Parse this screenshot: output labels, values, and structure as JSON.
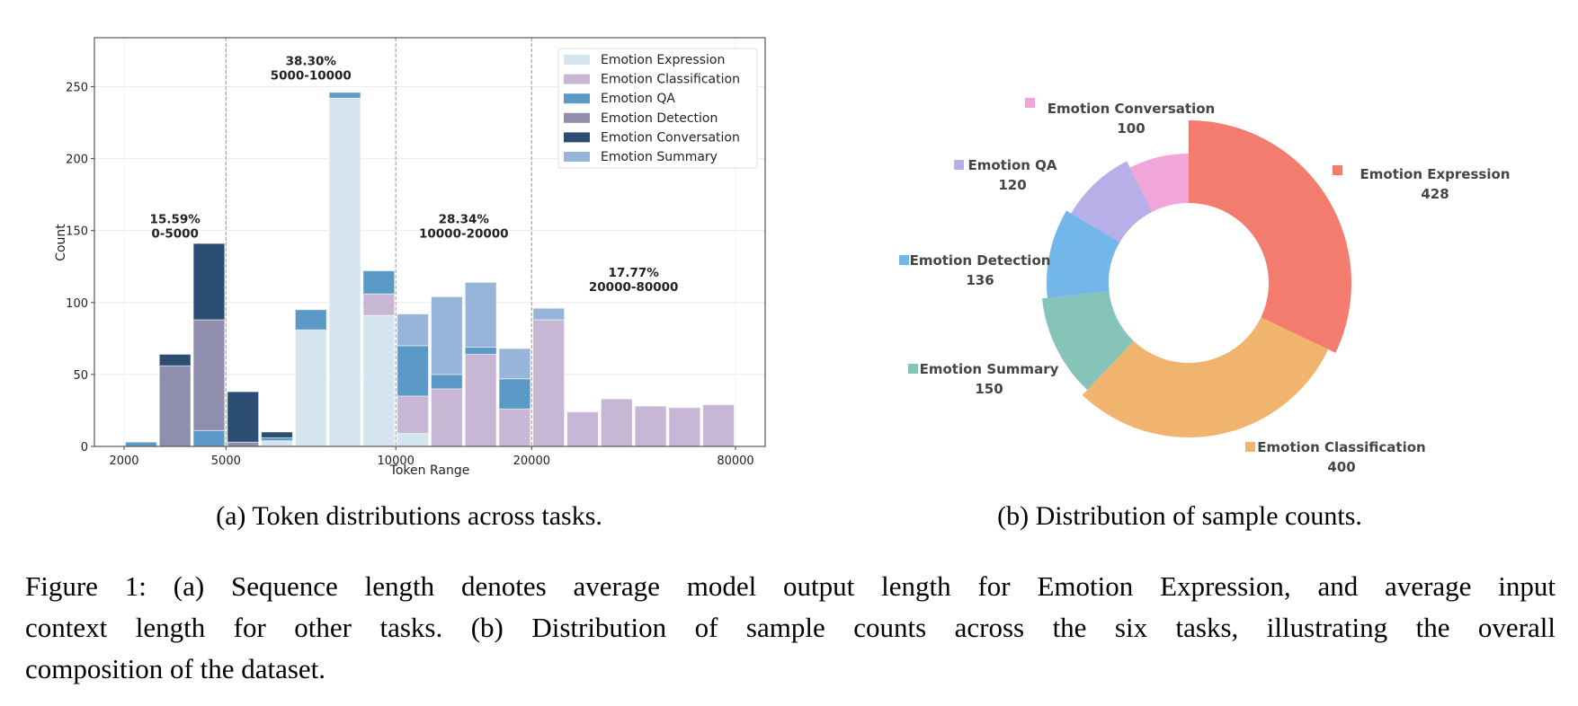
{
  "chart_data": [
    {
      "type": "bar",
      "stacked": true,
      "xlabel": "Token Range",
      "ylabel": "Count",
      "ylim": [
        0,
        284
      ],
      "yticks": [
        0,
        50,
        100,
        150,
        200,
        250
      ],
      "x_ticks": [
        {
          "label": "2000",
          "bin": 0
        },
        {
          "label": "5000",
          "bin": 3
        },
        {
          "label": "10000",
          "bin": 8
        },
        {
          "label": "20000",
          "bin": 12
        },
        {
          "label": "80000",
          "bin": 18
        }
      ],
      "grid": true,
      "legend_position": "top-right",
      "range_dividers": [
        3,
        8,
        12
      ],
      "annotations": [
        {
          "percent": "15.59%",
          "range": "0-5000",
          "bin_center": 1.5,
          "y": 155
        },
        {
          "percent": "38.30%",
          "range": "5000-10000",
          "bin_center": 5.5,
          "y": 265
        },
        {
          "percent": "28.34%",
          "range": "10000-20000",
          "bin_center": 10.0,
          "y": 155
        },
        {
          "percent": "17.77%",
          "range": "20000-80000",
          "bin_center": 15.0,
          "y": 118
        }
      ],
      "bin_count": 18,
      "series": [
        {
          "name": "Emotion Expression",
          "color": "#d4e5f0",
          "values": [
            0,
            0,
            0,
            0,
            4,
            81,
            242,
            91,
            9,
            0,
            0,
            0,
            0,
            0,
            0,
            0,
            0,
            0
          ]
        },
        {
          "name": "Emotion Classification",
          "color": "#c8b7d4",
          "values": [
            0,
            0,
            0,
            0,
            0,
            0,
            0,
            15,
            26,
            40,
            64,
            26,
            88,
            24,
            33,
            28,
            27,
            29
          ]
        },
        {
          "name": "Emotion QA",
          "color": "#5b9ac7",
          "values": [
            3,
            0,
            11,
            0,
            2,
            14,
            4,
            16,
            35,
            10,
            5,
            21,
            0,
            0,
            0,
            0,
            0,
            0
          ]
        },
        {
          "name": "Emotion Detection",
          "color": "#8f8fad",
          "values": [
            0,
            56,
            77,
            3,
            0,
            0,
            0,
            0,
            0,
            0,
            0,
            0,
            0,
            0,
            0,
            0,
            0,
            0
          ]
        },
        {
          "name": "Emotion Conversation",
          "color": "#2c4e73",
          "values": [
            0,
            8,
            53,
            35,
            4,
            0,
            0,
            0,
            0,
            0,
            0,
            0,
            0,
            0,
            0,
            0,
            0,
            0
          ]
        },
        {
          "name": "Emotion Summary",
          "color": "#96b5d9",
          "values": [
            0,
            0,
            0,
            0,
            0,
            0,
            0,
            0,
            22,
            54,
            45,
            21,
            8,
            0,
            0,
            0,
            0,
            0
          ]
        }
      ]
    },
    {
      "type": "pie",
      "donut": true,
      "slices": [
        {
          "label": "Emotion Expression",
          "value": 428,
          "color": "#f47c6e"
        },
        {
          "label": "Emotion Classification",
          "value": 400,
          "color": "#f1b46f"
        },
        {
          "label": "Emotion Summary",
          "value": 150,
          "color": "#86c3b8"
        },
        {
          "label": "Emotion Detection",
          "value": 136,
          "color": "#72b6ea"
        },
        {
          "label": "Emotion QA",
          "value": 120,
          "color": "#b8aee8"
        },
        {
          "label": "Emotion Conversation",
          "value": 100,
          "color": "#f0a6d9"
        }
      ]
    }
  ],
  "captions": {
    "a": "(a) Token distributions across tasks.",
    "b": "(b) Distribution of sample counts.",
    "figure_lines": [
      "Figure 1: (a) Sequence length denotes average model output length for Emotion Expression, and average input",
      "context length for other tasks.  (b) Distribution of sample counts across the six tasks, illustrating the overall",
      "composition of the dataset."
    ]
  }
}
